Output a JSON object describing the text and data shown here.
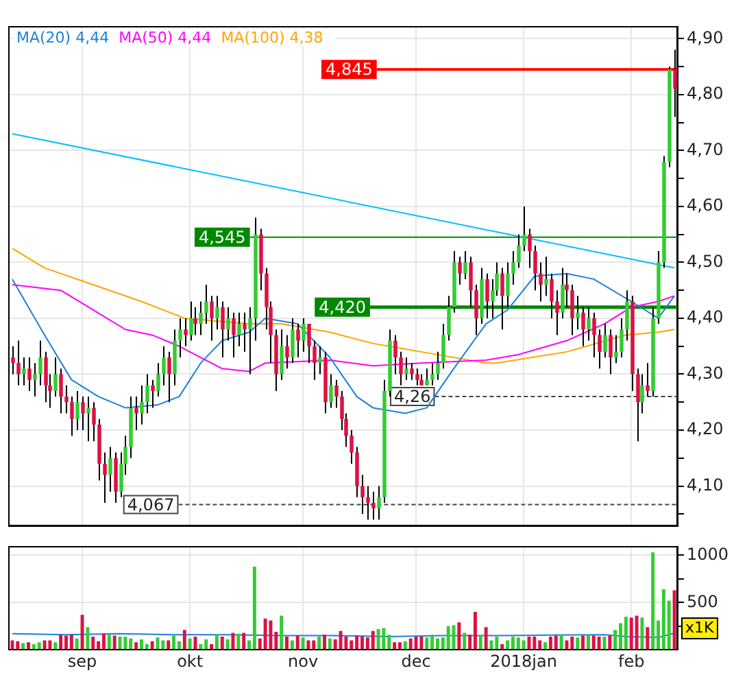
{
  "chart_data": [
    {
      "type": "candlestick",
      "categories": [
        null,
        null,
        null,
        null,
        null,
        null,
        null,
        null,
        null,
        null,
        null,
        null,
        null,
        null,
        null,
        null,
        null,
        null,
        null,
        null,
        null,
        null,
        null,
        null,
        null,
        null,
        null,
        null,
        null,
        null,
        null,
        null,
        null,
        null,
        null,
        null,
        null,
        null,
        null,
        null,
        null,
        null,
        null,
        null,
        null,
        null,
        null,
        null,
        null,
        null,
        null,
        null,
        null,
        null,
        null,
        null,
        null,
        null,
        null,
        null,
        null,
        null,
        null,
        null,
        null,
        null,
        null,
        null,
        null,
        null,
        null,
        null,
        null,
        null,
        null,
        null,
        null,
        null,
        null,
        null,
        null,
        null,
        null,
        null,
        null,
        null,
        null,
        null,
        null,
        null,
        null,
        null,
        null,
        null,
        null,
        null,
        null,
        null,
        null,
        null,
        null,
        null,
        null,
        null,
        null,
        null,
        null,
        null,
        null,
        null,
        null,
        null,
        null,
        null,
        null,
        null,
        null,
        null,
        null,
        null,
        null,
        null,
        null,
        null
      ],
      "ohlc": [
        [
          4.33,
          4.35,
          4.3,
          4.32
        ],
        [
          4.32,
          4.36,
          4.28,
          4.3
        ],
        [
          4.3,
          4.33,
          4.28,
          4.31
        ],
        [
          4.31,
          4.33,
          4.27,
          4.29
        ],
        [
          4.29,
          4.32,
          4.26,
          4.3
        ],
        [
          4.3,
          4.36,
          4.28,
          4.33
        ],
        [
          4.33,
          4.34,
          4.25,
          4.28
        ],
        [
          4.28,
          4.3,
          4.24,
          4.27
        ],
        [
          4.27,
          4.33,
          4.26,
          4.3
        ],
        [
          4.3,
          4.31,
          4.23,
          4.26
        ],
        [
          4.26,
          4.28,
          4.23,
          4.25
        ],
        [
          4.25,
          4.26,
          4.19,
          4.22
        ],
        [
          4.22,
          4.27,
          4.2,
          4.25
        ],
        [
          4.25,
          4.26,
          4.2,
          4.23
        ],
        [
          4.23,
          4.26,
          4.18,
          4.24
        ],
        [
          4.24,
          4.25,
          4.18,
          4.21
        ],
        [
          4.21,
          4.22,
          4.11,
          4.14
        ],
        [
          4.14,
          4.16,
          4.07,
          4.12
        ],
        [
          4.12,
          4.17,
          4.09,
          4.15
        ],
        [
          4.15,
          4.16,
          4.07,
          4.09
        ],
        [
          4.09,
          4.16,
          4.08,
          4.14
        ],
        [
          4.14,
          4.19,
          4.12,
          4.17
        ],
        [
          4.17,
          4.26,
          4.15,
          4.24
        ],
        [
          4.24,
          4.26,
          4.2,
          4.23
        ],
        [
          4.23,
          4.28,
          4.21,
          4.25
        ],
        [
          4.25,
          4.3,
          4.23,
          4.28
        ],
        [
          4.28,
          4.29,
          4.24,
          4.27
        ],
        [
          4.27,
          4.32,
          4.26,
          4.3
        ],
        [
          4.3,
          4.35,
          4.28,
          4.33
        ],
        [
          4.33,
          4.34,
          4.25,
          4.3
        ],
        [
          4.3,
          4.38,
          4.28,
          4.36
        ],
        [
          4.36,
          4.4,
          4.33,
          4.38
        ],
        [
          4.38,
          4.4,
          4.35,
          4.37
        ],
        [
          4.37,
          4.43,
          4.36,
          4.4
        ],
        [
          4.4,
          4.42,
          4.37,
          4.39
        ],
        [
          4.39,
          4.43,
          4.37,
          4.41
        ],
        [
          4.41,
          4.46,
          4.39,
          4.43
        ],
        [
          4.43,
          4.44,
          4.36,
          4.4
        ],
        [
          4.4,
          4.44,
          4.38,
          4.42
        ],
        [
          4.42,
          4.43,
          4.33,
          4.38
        ],
        [
          4.38,
          4.42,
          4.36,
          4.4
        ],
        [
          4.4,
          4.41,
          4.33,
          4.37
        ],
        [
          4.37,
          4.41,
          4.35,
          4.39
        ],
        [
          4.39,
          4.41,
          4.34,
          4.38
        ],
        [
          4.38,
          4.42,
          4.3,
          4.4
        ],
        [
          4.4,
          4.58,
          4.36,
          4.55
        ],
        [
          4.55,
          4.56,
          4.45,
          4.48
        ],
        [
          4.48,
          4.49,
          4.38,
          4.42
        ],
        [
          4.42,
          4.43,
          4.32,
          4.37
        ],
        [
          4.37,
          4.38,
          4.27,
          4.3
        ],
        [
          4.3,
          4.38,
          4.29,
          4.35
        ],
        [
          4.35,
          4.37,
          4.31,
          4.33
        ],
        [
          4.33,
          4.4,
          4.32,
          4.38
        ],
        [
          4.38,
          4.39,
          4.33,
          4.36
        ],
        [
          4.36,
          4.4,
          4.34,
          4.39
        ],
        [
          4.39,
          4.39,
          4.32,
          4.35
        ],
        [
          4.35,
          4.36,
          4.29,
          4.32
        ],
        [
          4.32,
          4.35,
          4.3,
          4.33
        ],
        [
          4.33,
          4.34,
          4.23,
          4.25
        ],
        [
          4.25,
          4.3,
          4.24,
          4.28
        ],
        [
          4.28,
          4.29,
          4.24,
          4.26
        ],
        [
          4.26,
          4.27,
          4.2,
          4.22
        ],
        [
          4.22,
          4.23,
          4.17,
          4.19
        ],
        [
          4.19,
          4.2,
          4.14,
          4.16
        ],
        [
          4.16,
          4.17,
          4.08,
          4.1
        ],
        [
          4.1,
          4.12,
          4.05,
          4.08
        ],
        [
          4.08,
          4.1,
          4.04,
          4.07
        ],
        [
          4.07,
          4.09,
          4.04,
          4.06
        ],
        [
          4.06,
          4.1,
          4.04,
          4.08
        ],
        [
          4.08,
          4.29,
          4.07,
          4.27
        ],
        [
          4.27,
          4.38,
          4.26,
          4.36
        ],
        [
          4.36,
          4.37,
          4.3,
          4.33
        ],
        [
          4.33,
          4.34,
          4.28,
          4.3
        ],
        [
          4.3,
          4.33,
          4.29,
          4.31
        ],
        [
          4.31,
          4.32,
          4.29,
          4.3
        ],
        [
          4.3,
          4.31,
          4.28,
          4.29
        ],
        [
          4.29,
          4.3,
          4.28,
          4.28
        ],
        [
          4.28,
          4.31,
          4.28,
          4.29
        ],
        [
          4.29,
          4.32,
          4.28,
          4.3
        ],
        [
          4.3,
          4.34,
          4.29,
          4.32
        ],
        [
          4.32,
          4.39,
          4.31,
          4.37
        ],
        [
          4.37,
          4.44,
          4.36,
          4.42
        ],
        [
          4.42,
          4.52,
          4.41,
          4.5
        ],
        [
          4.5,
          4.51,
          4.46,
          4.48
        ],
        [
          4.48,
          4.52,
          4.47,
          4.5
        ],
        [
          4.5,
          4.51,
          4.42,
          4.45
        ],
        [
          4.45,
          4.46,
          4.37,
          4.4
        ],
        [
          4.4,
          4.49,
          4.39,
          4.47
        ],
        [
          4.47,
          4.48,
          4.4,
          4.43
        ],
        [
          4.43,
          4.47,
          4.4,
          4.45
        ],
        [
          4.45,
          4.5,
          4.44,
          4.48
        ],
        [
          4.48,
          4.49,
          4.38,
          4.44
        ],
        [
          4.44,
          4.5,
          4.42,
          4.48
        ],
        [
          4.48,
          4.52,
          4.46,
          4.5
        ],
        [
          4.5,
          4.55,
          4.49,
          4.53
        ],
        [
          4.53,
          4.6,
          4.52,
          4.55
        ],
        [
          4.55,
          4.56,
          4.49,
          4.52
        ],
        [
          4.52,
          4.53,
          4.45,
          4.48
        ],
        [
          4.48,
          4.5,
          4.43,
          4.46
        ],
        [
          4.46,
          4.51,
          4.44,
          4.47
        ],
        [
          4.47,
          4.48,
          4.4,
          4.43
        ],
        [
          4.43,
          4.45,
          4.37,
          4.41
        ],
        [
          4.41,
          4.49,
          4.4,
          4.46
        ],
        [
          4.46,
          4.48,
          4.42,
          4.45
        ],
        [
          4.45,
          4.46,
          4.37,
          4.4
        ],
        [
          4.4,
          4.44,
          4.38,
          4.41
        ],
        [
          4.41,
          4.42,
          4.35,
          4.38
        ],
        [
          4.38,
          4.42,
          4.36,
          4.4
        ],
        [
          4.4,
          4.41,
          4.33,
          4.37
        ],
        [
          4.37,
          4.38,
          4.31,
          4.34
        ],
        [
          4.34,
          4.39,
          4.33,
          4.37
        ],
        [
          4.37,
          4.38,
          4.3,
          4.33
        ],
        [
          4.33,
          4.37,
          4.32,
          4.34
        ],
        [
          4.34,
          4.4,
          4.33,
          4.38
        ],
        [
          4.38,
          4.45,
          4.36,
          4.43
        ],
        [
          4.43,
          4.44,
          4.27,
          4.3
        ],
        [
          4.3,
          4.31,
          4.18,
          4.25
        ],
        [
          4.25,
          4.3,
          4.23,
          4.28
        ],
        [
          4.28,
          4.32,
          4.26,
          4.27
        ],
        [
          4.27,
          4.42,
          4.26,
          4.4
        ],
        [
          4.4,
          4.52,
          4.39,
          4.5
        ],
        [
          4.5,
          4.69,
          4.49,
          4.68
        ],
        [
          4.68,
          4.85,
          4.67,
          4.845
        ],
        [
          4.845,
          4.88,
          4.76,
          4.81
        ]
      ],
      "colors": [
        "#dd1144",
        "#dd1144",
        "#33cc33",
        "#dd1144",
        "#33cc33",
        "#33cc33",
        "#dd1144",
        "#dd1144",
        "#33cc33",
        "#dd1144",
        "#dd1144",
        "#dd1144",
        "#33cc33",
        "#dd1144",
        "#33cc33",
        "#dd1144",
        "#dd1144",
        "#dd1144",
        "#33cc33",
        "#dd1144",
        "#33cc33",
        "#33cc33",
        "#33cc33",
        "#dd1144",
        "#33cc33",
        "#33cc33",
        "#dd1144",
        "#33cc33",
        "#33cc33",
        "#dd1144",
        "#33cc33",
        "#33cc33",
        "#dd1144",
        "#33cc33",
        "#dd1144",
        "#33cc33",
        "#33cc33",
        "#dd1144",
        "#33cc33",
        "#dd1144",
        "#33cc33",
        "#dd1144",
        "#33cc33",
        "#dd1144",
        "#33cc33",
        "#33cc33",
        "#dd1144",
        "#dd1144",
        "#dd1144",
        "#dd1144",
        "#33cc33",
        "#dd1144",
        "#33cc33",
        "#dd1144",
        "#33cc33",
        "#dd1144",
        "#dd1144",
        "#33cc33",
        "#dd1144",
        "#33cc33",
        "#dd1144",
        "#dd1144",
        "#dd1144",
        "#dd1144",
        "#dd1144",
        "#dd1144",
        "#dd1144",
        "#dd1144",
        "#33cc33",
        "#33cc33",
        "#33cc33",
        "#dd1144",
        "#dd1144",
        "#33cc33",
        "#dd1144",
        "#dd1144",
        "#dd1144",
        "#33cc33",
        "#33cc33",
        "#33cc33",
        "#33cc33",
        "#33cc33",
        "#33cc33",
        "#dd1144",
        "#33cc33",
        "#dd1144",
        "#dd1144",
        "#33cc33",
        "#dd1144",
        "#33cc33",
        "#33cc33",
        "#dd1144",
        "#33cc33",
        "#33cc33",
        "#33cc33",
        "#33cc33",
        "#dd1144",
        "#dd1144",
        "#dd1144",
        "#33cc33",
        "#dd1144",
        "#dd1144",
        "#33cc33",
        "#dd1144",
        "#dd1144",
        "#33cc33",
        "#dd1144",
        "#33cc33",
        "#dd1144",
        "#dd1144",
        "#33cc33",
        "#dd1144",
        "#33cc33",
        "#33cc33",
        "#33cc33",
        "#dd1144",
        "#dd1144",
        "#33cc33",
        "#dd1144",
        "#33cc33",
        "#33cc33",
        "#33cc33",
        "#33cc33",
        "#dd1144"
      ],
      "series": [
        {
          "type": "line",
          "name": "MA(20) 4,44",
          "color": "#1e7fd8",
          "values": [
            4.47,
            null,
            null,
            null,
            null,
            null,
            4.37,
            null,
            null,
            null,
            null,
            4.29,
            null,
            null,
            null,
            null,
            4.26,
            null,
            null,
            null,
            null,
            4.24,
            null,
            null,
            null,
            null,
            null,
            4.245,
            null,
            null,
            null,
            4.26,
            null,
            null,
            null,
            4.32,
            null,
            null,
            null,
            4.36,
            null,
            null,
            null,
            null,
            4.375,
            null,
            null,
            4.4,
            null,
            null,
            null,
            null,
            null,
            4.39,
            null,
            null,
            null,
            null,
            null,
            4.33,
            null,
            null,
            null,
            null,
            4.26,
            null,
            null,
            4.24,
            null,
            null,
            null,
            null,
            null,
            4.23,
            null,
            null,
            null,
            4.24,
            null,
            null,
            null,
            null,
            4.31,
            null,
            null,
            null,
            null,
            null,
            4.39,
            null,
            null,
            null,
            4.415,
            null,
            null,
            null,
            null,
            4.475,
            null,
            null,
            null,
            null,
            null,
            4.48,
            null,
            null,
            null,
            null,
            4.47,
            null,
            null,
            null,
            null,
            null,
            null,
            4.43,
            null,
            null,
            null,
            null,
            4.4,
            null,
            null,
            4.44
          ]
        },
        {
          "type": "line",
          "name": "MA(50) 4,44",
          "color": "#ff00ff",
          "values": [
            4.46,
            null,
            null,
            null,
            null,
            null,
            null,
            null,
            null,
            4.45,
            null,
            null,
            null,
            null,
            null,
            4.415,
            null,
            null,
            null,
            null,
            null,
            4.38,
            null,
            null,
            null,
            null,
            4.37,
            null,
            null,
            null,
            null,
            4.35,
            null,
            null,
            null,
            4.33,
            null,
            null,
            null,
            4.31,
            null,
            null,
            null,
            null,
            4.305,
            null,
            null,
            4.32,
            null,
            null,
            null,
            null,
            null,
            null,
            null,
            null,
            null,
            null,
            null,
            4.325,
            null,
            null,
            null,
            null,
            null,
            null,
            null,
            4.315,
            null,
            null,
            null,
            null,
            null,
            null,
            null,
            null,
            4.32,
            null,
            null,
            null,
            null,
            null,
            null,
            null,
            null,
            null,
            null,
            null,
            4.325,
            null,
            null,
            null,
            null,
            null,
            4.335,
            null,
            null,
            null,
            null,
            null,
            null,
            null,
            null,
            4.36,
            null,
            null,
            null,
            null,
            null,
            null,
            4.39,
            null,
            null,
            null,
            null,
            4.42,
            null,
            null,
            null,
            null,
            4.43,
            null,
            null,
            4.44
          ]
        },
        {
          "type": "line",
          "name": "MA(100) 4,38",
          "color": "#ffa500",
          "values": [
            4.525,
            null,
            null,
            null,
            null,
            null,
            4.49,
            null,
            null,
            null,
            null,
            null,
            null,
            null,
            null,
            4.46,
            null,
            null,
            null,
            null,
            null,
            null,
            null,
            null,
            4.43,
            null,
            null,
            null,
            null,
            null,
            null,
            null,
            4.4,
            null,
            null,
            null,
            null,
            null,
            null,
            null,
            null,
            null,
            null,
            null,
            4.39,
            null,
            null,
            null,
            null,
            null,
            4.39,
            null,
            null,
            null,
            null,
            null,
            null,
            null,
            null,
            4.375,
            null,
            null,
            null,
            null,
            null,
            null,
            null,
            4.355,
            null,
            null,
            null,
            null,
            null,
            null,
            null,
            null,
            4.34,
            null,
            null,
            null,
            null,
            null,
            null,
            null,
            null,
            null,
            null,
            null,
            4.32,
            null,
            4.32,
            null,
            null,
            null,
            null,
            null,
            null,
            null,
            null,
            null,
            null,
            null,
            null,
            4.34,
            null,
            null,
            null,
            null,
            null,
            null,
            null,
            null,
            null,
            null,
            4.37,
            null,
            null,
            null,
            null,
            null,
            4.375,
            null,
            null,
            4.38
          ]
        },
        {
          "type": "line",
          "color": "#00bfff",
          "values": [
            4.73,
            null,
            null,
            null,
            null,
            null,
            null,
            null,
            null,
            null,
            null,
            null,
            null,
            null,
            null,
            null,
            null,
            null,
            null,
            null,
            null,
            null,
            null,
            null,
            null,
            null,
            null,
            null,
            null,
            null,
            null,
            null,
            null,
            null,
            null,
            null,
            null,
            null,
            null,
            null,
            null,
            null,
            null,
            null,
            null,
            null,
            null,
            null,
            null,
            null,
            null,
            null,
            null,
            null,
            null,
            null,
            null,
            null,
            null,
            null,
            null,
            null,
            null,
            null,
            null,
            null,
            null,
            null,
            null,
            null,
            null,
            null,
            null,
            null,
            null,
            null,
            null,
            null,
            null,
            null,
            null,
            null,
            null,
            null,
            null,
            null,
            null,
            null,
            null,
            null,
            null,
            null,
            null,
            null,
            null,
            null,
            null,
            null,
            null,
            null,
            null,
            null,
            null,
            null,
            null,
            null,
            null,
            null,
            null,
            null,
            null,
            null,
            null,
            null,
            null,
            null,
            null,
            null,
            null,
            null,
            null,
            null,
            null,
            4.49
          ]
        }
      ],
      "ylim": [
        4.03,
        4.92
      ],
      "yticks": [
        {
          "value": 4.05,
          "label": null
        },
        {
          "value": 4.1,
          "label": "4,10"
        },
        {
          "value": 4.15,
          "label": null
        },
        {
          "value": 4.2,
          "label": "4,20"
        },
        {
          "value": 4.25,
          "label": null
        },
        {
          "value": 4.3,
          "label": "4,30"
        },
        {
          "value": 4.35,
          "label": null
        },
        {
          "value": 4.4,
          "label": "4,40"
        },
        {
          "value": 4.45,
          "label": null
        },
        {
          "value": 4.5,
          "label": "4,50"
        },
        {
          "value": 4.55,
          "label": null
        },
        {
          "value": 4.6,
          "label": "4,60"
        },
        {
          "value": 4.65,
          "label": null
        },
        {
          "value": 4.7,
          "label": "4,70"
        },
        {
          "value": 4.75,
          "label": null
        },
        {
          "value": 4.8,
          "label": "4,80"
        },
        {
          "value": 4.85,
          "label": null
        },
        {
          "value": 4.9,
          "label": "4,90"
        }
      ],
      "ref_lines": [
        {
          "axis": "y",
          "value": 4.845,
          "label": "4,845",
          "color": "#ff0000"
        },
        {
          "axis": "y",
          "value": 4.545,
          "label": "4,545",
          "color": "#008800"
        },
        {
          "axis": "y",
          "value": 4.42,
          "label": "4,420",
          "color": "#008800"
        },
        {
          "axis": "y",
          "value": 4.26,
          "label": "4,26",
          "color": "#444444",
          "line_style": "dashed"
        },
        {
          "axis": "y",
          "value": 4.067,
          "label": "4,067",
          "color": "#444444",
          "line_style": "dashed"
        }
      ],
      "grid": true,
      "legend": "top left",
      "marker": "none",
      "tick_labels": "y"
    },
    {
      "type": "bar",
      "categories": [
        null,
        null,
        null,
        null,
        null,
        null,
        null,
        null,
        null,
        null,
        null,
        null,
        null,
        "sep",
        null,
        null,
        null,
        null,
        null,
        null,
        null,
        null,
        null,
        null,
        null,
        null,
        null,
        null,
        null,
        null,
        null,
        null,
        null,
        "okt",
        null,
        null,
        null,
        null,
        null,
        null,
        null,
        null,
        null,
        null,
        null,
        null,
        null,
        null,
        null,
        null,
        null,
        null,
        null,
        null,
        "nov",
        null,
        null,
        null,
        null,
        null,
        null,
        null,
        null,
        null,
        null,
        null,
        null,
        null,
        null,
        null,
        null,
        null,
        null,
        null,
        null,
        "dec",
        null,
        null,
        null,
        null,
        null,
        null,
        null,
        null,
        null,
        null,
        null,
        null,
        null,
        null,
        null,
        null,
        null,
        null,
        null,
        "2018jan",
        null,
        null,
        null,
        null,
        null,
        null,
        null,
        null,
        null,
        null,
        null,
        null,
        null,
        null,
        null,
        null,
        null,
        null,
        null,
        "feb",
        null,
        null,
        null,
        null,
        null,
        null,
        null,
        null
      ],
      "values": [
        100,
        90,
        70,
        80,
        60,
        80,
        100,
        100,
        80,
        160,
        150,
        160,
        120,
        370,
        240,
        140,
        90,
        170,
        160,
        150,
        140,
        140,
        120,
        80,
        110,
        60,
        90,
        130,
        100,
        100,
        150,
        90,
        210,
        120,
        140,
        60,
        110,
        60,
        160,
        140,
        110,
        180,
        170,
        180,
        100,
        880,
        120,
        330,
        310,
        190,
        360,
        140,
        100,
        150,
        130,
        100,
        100,
        140,
        160,
        120,
        110,
        200,
        140,
        100,
        150,
        140,
        130,
        200,
        220,
        230,
        160,
        80,
        80,
        90,
        120,
        140,
        140,
        130,
        160,
        120,
        130,
        250,
        260,
        290,
        180,
        160,
        400,
        160,
        240,
        100,
        140,
        60,
        100,
        140,
        130,
        100,
        140,
        140,
        100,
        80,
        140,
        150,
        150,
        100,
        140,
        130,
        150,
        160,
        150,
        140,
        140,
        150,
        210,
        280,
        350,
        340,
        360,
        340,
        240,
        1030,
        310,
        640,
        520,
        630
      ],
      "colors": [
        "#dd1144",
        "#dd1144",
        "#33cc33",
        "#dd1144",
        "#33cc33",
        "#33cc33",
        "#dd1144",
        "#dd1144",
        "#33cc33",
        "#dd1144",
        "#dd1144",
        "#dd1144",
        "#33cc33",
        "#dd1144",
        "#33cc33",
        "#dd1144",
        "#dd1144",
        "#dd1144",
        "#33cc33",
        "#dd1144",
        "#33cc33",
        "#33cc33",
        "#33cc33",
        "#dd1144",
        "#33cc33",
        "#33cc33",
        "#dd1144",
        "#33cc33",
        "#33cc33",
        "#dd1144",
        "#33cc33",
        "#33cc33",
        "#dd1144",
        "#33cc33",
        "#dd1144",
        "#33cc33",
        "#33cc33",
        "#dd1144",
        "#33cc33",
        "#dd1144",
        "#33cc33",
        "#dd1144",
        "#33cc33",
        "#dd1144",
        "#33cc33",
        "#33cc33",
        "#dd1144",
        "#dd1144",
        "#dd1144",
        "#dd1144",
        "#33cc33",
        "#dd1144",
        "#33cc33",
        "#dd1144",
        "#33cc33",
        "#dd1144",
        "#dd1144",
        "#33cc33",
        "#dd1144",
        "#33cc33",
        "#dd1144",
        "#dd1144",
        "#dd1144",
        "#dd1144",
        "#dd1144",
        "#dd1144",
        "#dd1144",
        "#dd1144",
        "#33cc33",
        "#33cc33",
        "#33cc33",
        "#dd1144",
        "#dd1144",
        "#33cc33",
        "#dd1144",
        "#dd1144",
        "#dd1144",
        "#33cc33",
        "#33cc33",
        "#33cc33",
        "#33cc33",
        "#33cc33",
        "#33cc33",
        "#dd1144",
        "#33cc33",
        "#dd1144",
        "#dd1144",
        "#33cc33",
        "#dd1144",
        "#33cc33",
        "#33cc33",
        "#dd1144",
        "#33cc33",
        "#33cc33",
        "#33cc33",
        "#33cc33",
        "#dd1144",
        "#dd1144",
        "#dd1144",
        "#33cc33",
        "#dd1144",
        "#dd1144",
        "#33cc33",
        "#dd1144",
        "#dd1144",
        "#33cc33",
        "#dd1144",
        "#33cc33",
        "#dd1144",
        "#dd1144",
        "#33cc33",
        "#dd1144",
        "#33cc33",
        "#33cc33",
        "#33cc33",
        "#dd1144",
        "#dd1144",
        "#33cc33",
        "#dd1144",
        "#33cc33",
        "#33cc33",
        "#33cc33",
        "#33cc33",
        "#dd1144"
      ],
      "series": [
        {
          "type": "line",
          "color": "#1e7fd8",
          "values": [
            170,
            null,
            null,
            null,
            null,
            null,
            null,
            null,
            null,
            null,
            160,
            null,
            null,
            null,
            null,
            null,
            null,
            null,
            null,
            null,
            170,
            null,
            null,
            null,
            null,
            null,
            null,
            null,
            null,
            null,
            160,
            null,
            null,
            null,
            null,
            null,
            null,
            null,
            null,
            null,
            160,
            null,
            null,
            null,
            null,
            null,
            null,
            null,
            null,
            null,
            150,
            null,
            null,
            null,
            null,
            null,
            null,
            null,
            null,
            null,
            150,
            null,
            null,
            null,
            null,
            null,
            null,
            null,
            null,
            null,
            140,
            null,
            null,
            null,
            null,
            null,
            null,
            null,
            null,
            null,
            150,
            null,
            null,
            null,
            null,
            null,
            null,
            null,
            null,
            null,
            150,
            null,
            null,
            null,
            null,
            null,
            null,
            null,
            null,
            null,
            155,
            null,
            null,
            null,
            null,
            null,
            null,
            null,
            null,
            null,
            160,
            null,
            null,
            null,
            140,
            null,
            null,
            null,
            null,
            null,
            130,
            null,
            null,
            175
          ]
        }
      ],
      "ylim": [
        0,
        1080
      ],
      "yticks": [
        {
          "value": 250,
          "label": null
        },
        500,
        {
          "value": 750,
          "label": null
        },
        1000
      ],
      "grid": true,
      "marker": "none",
      "annotations": [
        "x1K"
      ]
    }
  ]
}
